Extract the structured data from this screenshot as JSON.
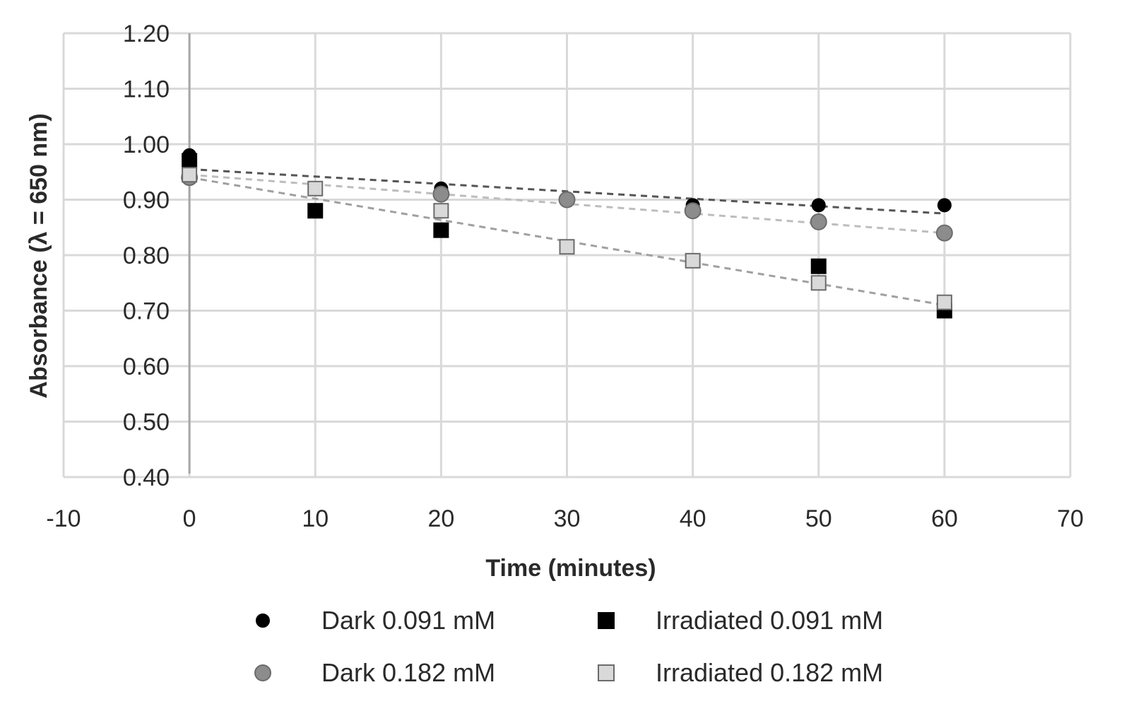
{
  "chart_data": {
    "type": "scatter",
    "title": "",
    "xlabel": "Time (minutes)",
    "ylabel": "Absorbance (λ = 650 nm)",
    "xlim": [
      -10,
      70
    ],
    "ylim": [
      0.4,
      1.2
    ],
    "x_ticks": [
      "-10",
      "0",
      "10",
      "20",
      "30",
      "40",
      "50",
      "60",
      "70"
    ],
    "y_ticks": [
      "0.40",
      "0.50",
      "0.60",
      "0.70",
      "0.80",
      "0.90",
      "1.00",
      "1.10",
      "1.20"
    ],
    "grid": true,
    "legend_position": "bottom",
    "series": [
      {
        "name": "Dark 0.091 mM",
        "marker": "circle",
        "color": "#000000",
        "x": [
          0,
          20,
          40,
          50,
          60
        ],
        "values": [
          0.98,
          0.92,
          0.89,
          0.89,
          0.89
        ],
        "trendline": {
          "x": [
            0,
            60
          ],
          "y": [
            0.955,
            0.875
          ],
          "color": "#555555"
        }
      },
      {
        "name": "Dark 0.182 mM",
        "marker": "circle",
        "color": "#8c8c8c",
        "x": [
          0,
          20,
          30,
          40,
          50,
          60
        ],
        "values": [
          0.94,
          0.91,
          0.9,
          0.88,
          0.86,
          0.84
        ],
        "trendline": {
          "x": [
            0,
            60
          ],
          "y": [
            0.945,
            0.84
          ],
          "color": "#bdbdbd"
        }
      },
      {
        "name": "Irradiated 0.091 mM",
        "marker": "square",
        "color": "#000000",
        "x": [
          0,
          10,
          20,
          50,
          60
        ],
        "values": [
          0.97,
          0.88,
          0.845,
          0.78,
          0.7
        ],
        "trendline": null
      },
      {
        "name": "Irradiated 0.182 mM",
        "marker": "square",
        "color": "#d9d9d9",
        "x": [
          0,
          10,
          20,
          30,
          40,
          50,
          60
        ],
        "values": [
          0.945,
          0.92,
          0.88,
          0.815,
          0.79,
          0.75,
          0.715
        ],
        "trendline": {
          "x": [
            0,
            60
          ],
          "y": [
            0.94,
            0.71
          ],
          "color": "#a0a0a0"
        }
      }
    ]
  }
}
